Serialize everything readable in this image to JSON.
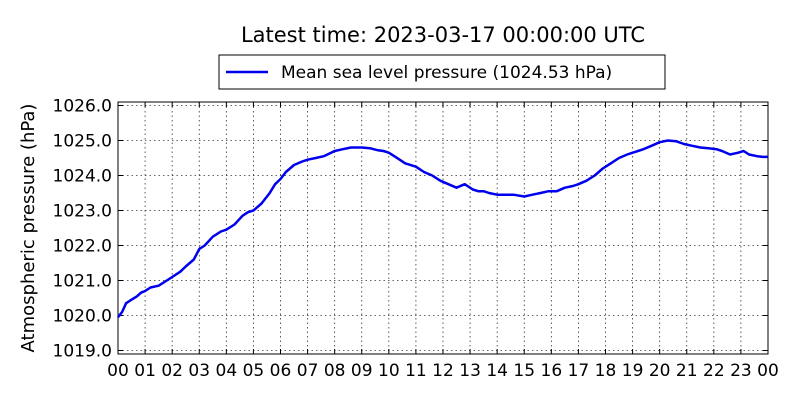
{
  "chart_data": {
    "type": "line",
    "title": "Latest time: 2023-03-17 00:00:00 UTC",
    "ylabel": "Atmospheric pressure (hPa)",
    "xlabel": "",
    "xlim": [
      0,
      24
    ],
    "ylim": [
      1018.9,
      1026.1
    ],
    "grid": true,
    "legend_position": "top-center",
    "x_ticks": [
      "00",
      "01",
      "02",
      "03",
      "04",
      "05",
      "06",
      "07",
      "08",
      "09",
      "10",
      "11",
      "12",
      "13",
      "14",
      "15",
      "16",
      "17",
      "18",
      "19",
      "20",
      "21",
      "22",
      "23",
      "00"
    ],
    "y_ticks": [
      "1019.0",
      "1020.0",
      "1021.0",
      "1022.0",
      "1023.0",
      "1024.0",
      "1025.0",
      "1026.0"
    ],
    "series": [
      {
        "name": "Mean sea level pressure (1024.53 hPa)",
        "color": "#0000ee",
        "x": [
          0,
          0.15,
          0.3,
          0.5,
          0.7,
          0.85,
          1,
          1.2,
          1.5,
          1.8,
          2,
          2.3,
          2.5,
          2.8,
          3,
          3.2,
          3.5,
          3.8,
          4,
          4.3,
          4.6,
          4.8,
          5,
          5.3,
          5.6,
          5.8,
          6,
          6.2,
          6.5,
          6.8,
          7,
          7.3,
          7.6,
          8,
          8.3,
          8.6,
          9,
          9.3,
          9.6,
          9.8,
          10,
          10.2,
          10.4,
          10.6,
          11,
          11.3,
          11.6,
          11.9,
          12.2,
          12.5,
          12.8,
          13.1,
          13.3,
          13.5,
          13.7,
          14,
          14.3,
          14.6,
          15,
          15.3,
          15.6,
          15.9,
          16.2,
          16.5,
          16.8,
          17,
          17.3,
          17.6,
          17.9,
          18.2,
          18.5,
          18.8,
          19,
          19.2,
          19.4,
          19.7,
          20,
          20.3,
          20.6,
          20.9,
          21.2,
          21.5,
          21.8,
          22.1,
          22.3,
          22.6,
          22.9,
          23.1,
          23.3,
          23.6,
          23.8,
          24
        ],
        "values": [
          1019.95,
          1020.1,
          1020.35,
          1020.45,
          1020.55,
          1020.65,
          1020.7,
          1020.8,
          1020.85,
          1021.0,
          1021.1,
          1021.25,
          1021.4,
          1021.6,
          1021.9,
          1022.0,
          1022.25,
          1022.4,
          1022.45,
          1022.6,
          1022.85,
          1022.95,
          1023.0,
          1023.2,
          1023.5,
          1023.75,
          1023.9,
          1024.1,
          1024.3,
          1024.4,
          1024.45,
          1024.5,
          1024.55,
          1024.7,
          1024.75,
          1024.8,
          1024.8,
          1024.78,
          1024.72,
          1024.7,
          1024.65,
          1024.55,
          1024.45,
          1024.35,
          1024.25,
          1024.1,
          1024.0,
          1023.85,
          1023.75,
          1023.65,
          1023.75,
          1023.6,
          1023.55,
          1023.55,
          1023.5,
          1023.45,
          1023.45,
          1023.45,
          1023.4,
          1023.45,
          1023.5,
          1023.55,
          1023.55,
          1023.65,
          1023.7,
          1023.75,
          1023.85,
          1024.0,
          1024.2,
          1024.35,
          1024.5,
          1024.6,
          1024.65,
          1024.7,
          1024.75,
          1024.85,
          1024.95,
          1025.0,
          1024.98,
          1024.9,
          1024.85,
          1024.8,
          1024.78,
          1024.75,
          1024.7,
          1024.6,
          1024.65,
          1024.7,
          1024.6,
          1024.55,
          1024.53,
          1024.53
        ]
      }
    ]
  }
}
